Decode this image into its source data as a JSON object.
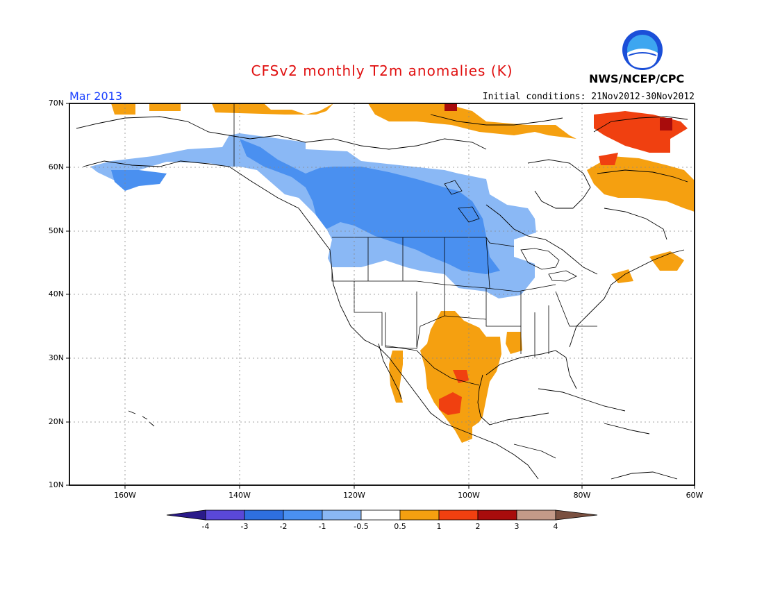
{
  "header": {
    "title": "CFSv2 monthly T2m anomalies (K)",
    "valid_month": "Mar 2013",
    "initial_conditions": "Initial conditions: 21Nov2012-30Nov2012",
    "agency": "NWS/NCEP/CPC"
  },
  "axes": {
    "lat_labels": [
      "70N",
      "60N",
      "50N",
      "40N",
      "30N",
      "20N",
      "10N"
    ],
    "lon_labels": [
      "160W",
      "140W",
      "120W",
      "100W",
      "80W",
      "60W"
    ]
  },
  "colorbar": {
    "labels": [
      "-4",
      "-3",
      "-2",
      "-1",
      "-0.5",
      "0.5",
      "1",
      "2",
      "3",
      "4"
    ],
    "colors": [
      "#2a1a8a",
      "#5a48d8",
      "#2e6fe0",
      "#4a90f0",
      "#8ab8f5",
      "#ffffff",
      "#f5a010",
      "#f04010",
      "#a80c0c",
      "#c49a88",
      "#7a5040"
    ]
  },
  "colors": {
    "title": "#e01010",
    "month": "#1a40ff"
  }
}
